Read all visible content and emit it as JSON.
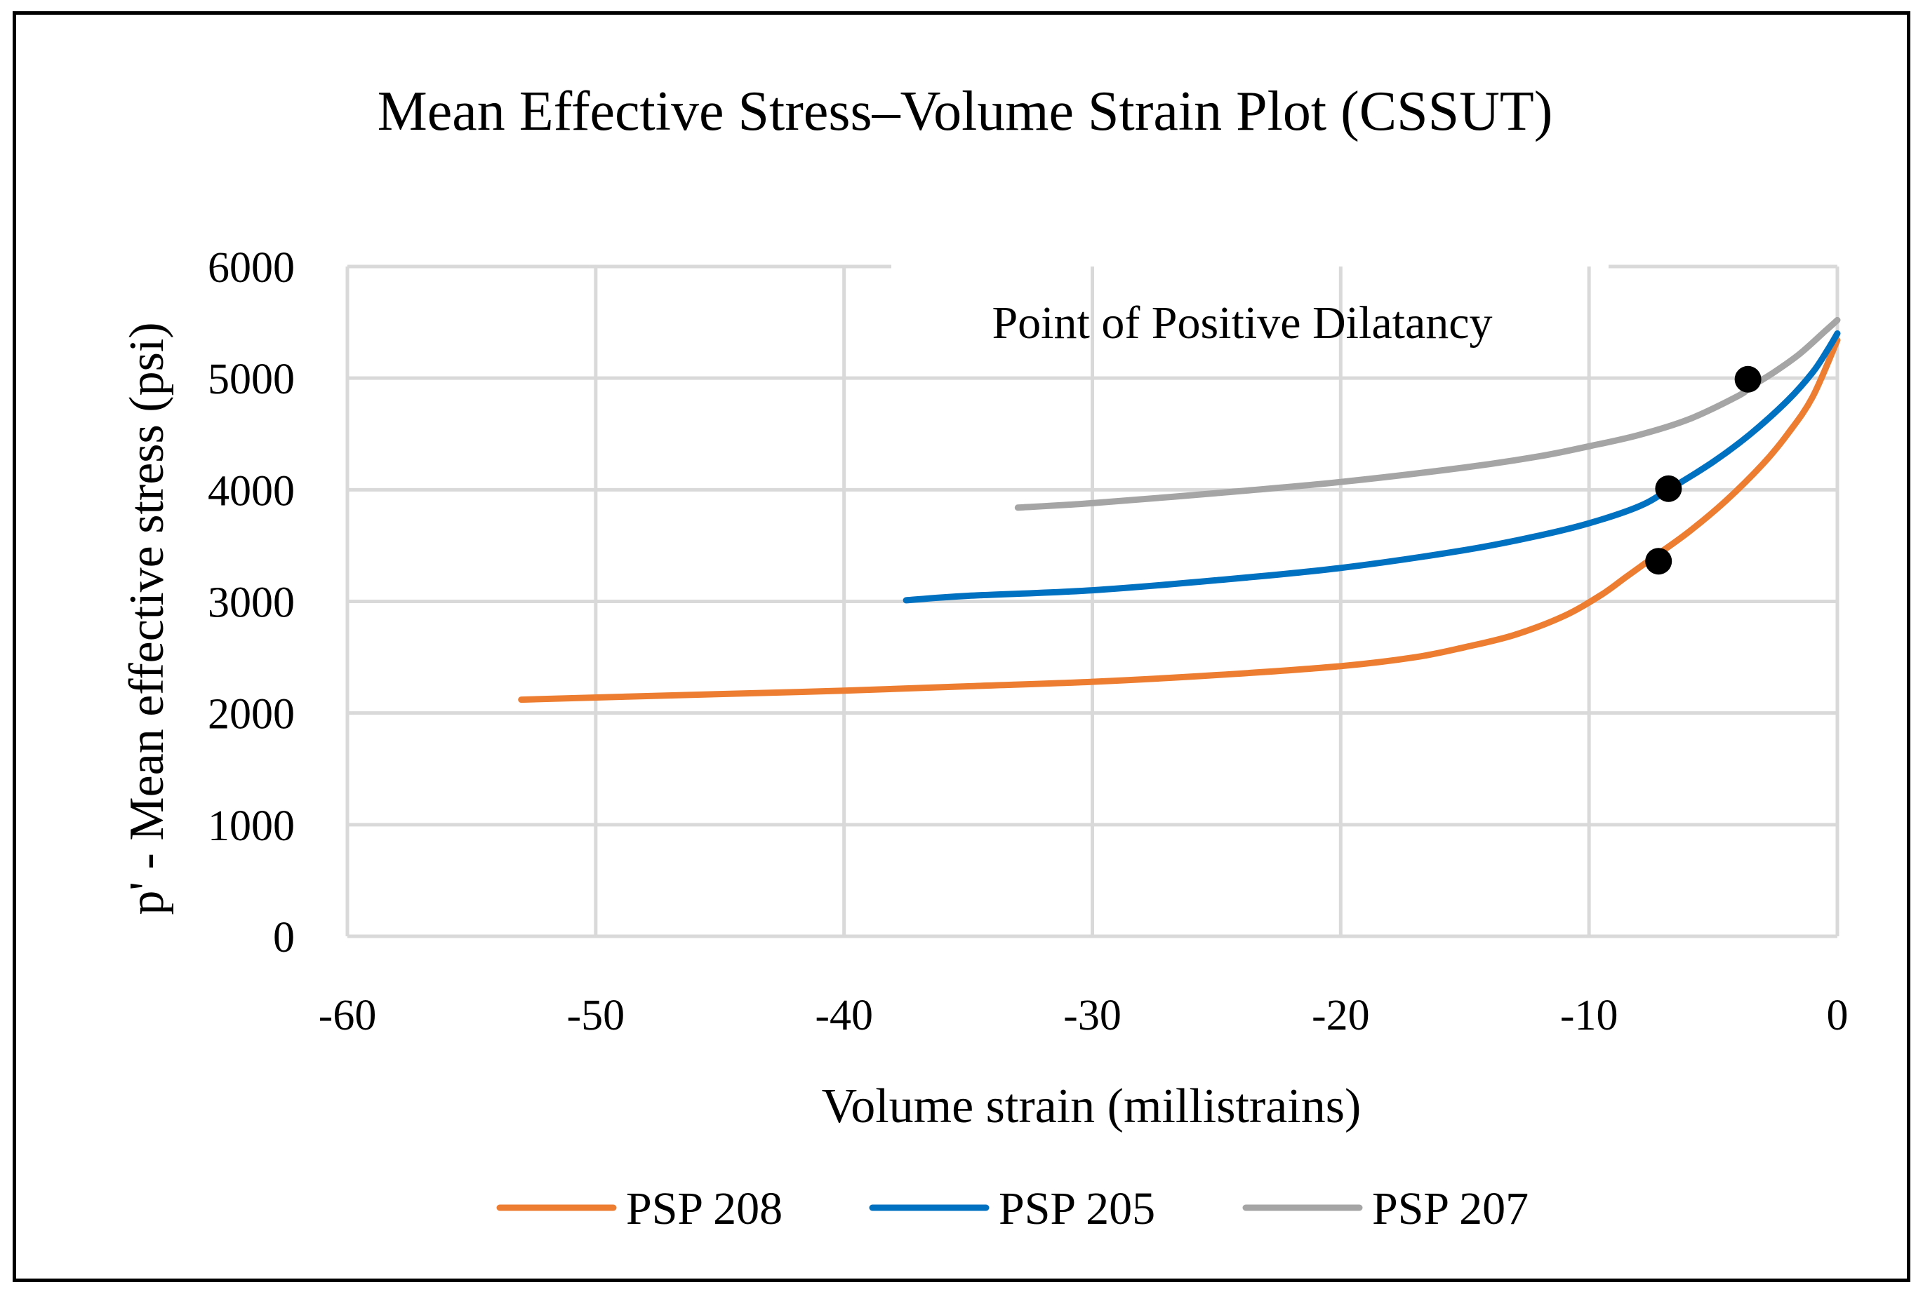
{
  "chart_data": {
    "type": "line",
    "title": "Mean Effective Stress–Volume Strain Plot (CSSUT)",
    "xlabel": "Volume strain (millistrains)",
    "ylabel": "p' - Mean effective stress (psi)",
    "xlim": [
      -60,
      0
    ],
    "ylim": [
      0,
      6000
    ],
    "xticks": [
      -60,
      -50,
      -40,
      -30,
      -20,
      -10,
      0
    ],
    "yticks": [
      0,
      1000,
      2000,
      3000,
      4000,
      5000,
      6000
    ],
    "grid": true,
    "legend_position": "bottom-center",
    "annotation": "Point of Positive Dilatancy",
    "series": [
      {
        "name": "PSP 208",
        "color": "#ED7D31",
        "x": [
          -53,
          -45,
          -40,
          -35,
          -30,
          -25,
          -20,
          -17,
          -15,
          -13,
          -11,
          -9.5,
          -8.5,
          -7.5,
          -6,
          -4.5,
          -3,
          -2,
          -1,
          0
        ],
        "y": [
          2120,
          2170,
          2200,
          2240,
          2280,
          2340,
          2420,
          2500,
          2590,
          2700,
          2870,
          3060,
          3220,
          3380,
          3620,
          3900,
          4230,
          4500,
          4830,
          5340
        ],
        "marker": {
          "x": -7.2,
          "y": 3360
        }
      },
      {
        "name": "PSP 205",
        "color": "#0070C0",
        "x": [
          -37.5,
          -35,
          -30,
          -25,
          -20,
          -15,
          -12,
          -10,
          -8,
          -6.8,
          -5,
          -3.5,
          -2,
          -1,
          -0.4,
          0
        ],
        "y": [
          3010,
          3050,
          3100,
          3190,
          3300,
          3460,
          3590,
          3700,
          3850,
          4000,
          4250,
          4500,
          4800,
          5050,
          5250,
          5400
        ],
        "marker": {
          "x": -6.8,
          "y": 4010
        }
      },
      {
        "name": "PSP 207",
        "color": "#A5A5A5",
        "x": [
          -33,
          -30,
          -25,
          -20,
          -15,
          -12,
          -10,
          -8,
          -6,
          -4,
          -3.5,
          -2.5,
          -1.5,
          -0.5,
          0
        ],
        "y": [
          3840,
          3880,
          3970,
          4070,
          4200,
          4300,
          4390,
          4490,
          4630,
          4840,
          4920,
          5060,
          5220,
          5420,
          5520
        ],
        "marker": {
          "x": -3.6,
          "y": 4990
        }
      }
    ]
  }
}
